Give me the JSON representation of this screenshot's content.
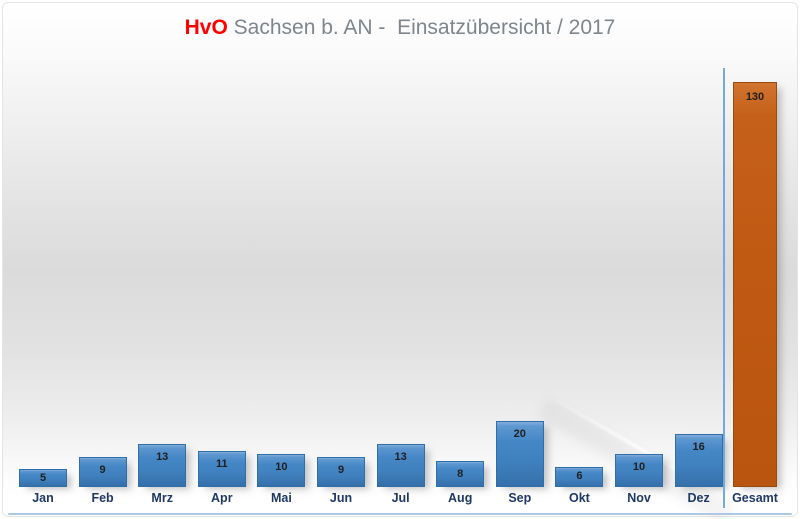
{
  "title": {
    "brand": "HvO",
    "rest": " Sachsen b. AN -  Einsatzübersicht / 2017"
  },
  "chart_data": {
    "type": "bar",
    "title": "HvO Sachsen b. AN -  Einsatzübersicht / 2017",
    "categories": [
      "Jan",
      "Feb",
      "Mrz",
      "Apr",
      "Mai",
      "Jun",
      "Jul",
      "Aug",
      "Sep",
      "Okt",
      "Nov",
      "Dez",
      "Gesamt"
    ],
    "values": [
      5,
      9,
      13,
      11,
      10,
      9,
      13,
      8,
      20,
      6,
      10,
      16,
      130
    ],
    "total_category": "Gesamt",
    "total_value": 130,
    "xlabel": "",
    "ylabel": "",
    "y_axis_visible": false,
    "grid": false,
    "legend": "none",
    "data_labels": "inside-end",
    "separator_after_index": 11
  },
  "colors": {
    "title_brand": "#fe0000",
    "title_rest": "#7e868c",
    "bar_blue": "#4285c5",
    "bar_blue_border": "#2f6fa7",
    "bar_orange": "#c05912",
    "bar_orange_border": "#9a4a0d",
    "month_label": "#1f3864",
    "value_label": "#202020",
    "separator": "#74a9dc",
    "frame_border": "#e2e5e7",
    "bottom_edge": "#adc9e2",
    "background_mid": "#dbdbdb"
  }
}
